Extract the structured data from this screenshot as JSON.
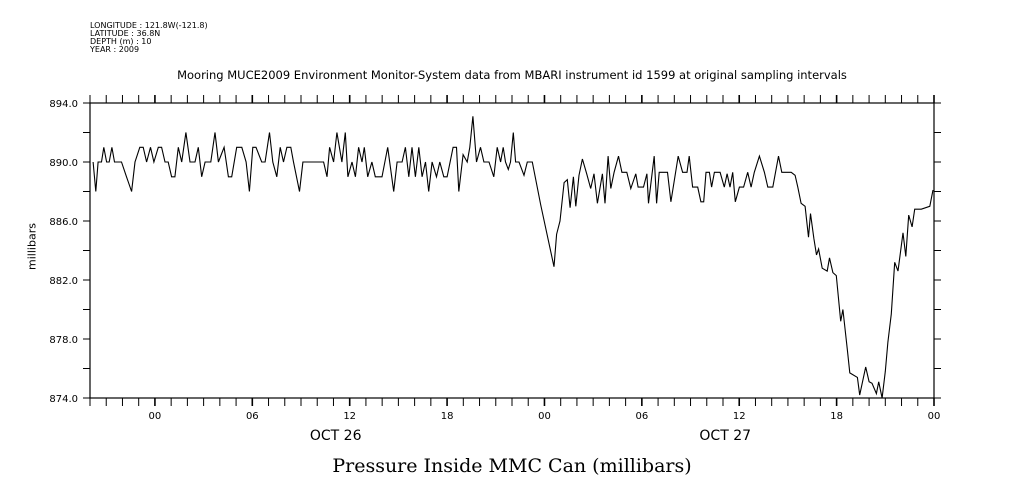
{
  "header": {
    "longitude": "LONGITUDE : 121.8W(-121.8)",
    "latitude": "LATITUDE : 36.8N",
    "depth": "DEPTH (m) : 10",
    "year": "YEAR : 2009"
  },
  "chart_data": {
    "type": "line",
    "title": "Mooring MUCE2009 Environment Monitor-System data from MBARI instrument id 1599 at original sampling intervals",
    "xlabel": "Pressure Inside MMC Can (millibars)",
    "ylabel": "millibars",
    "x_units": "hours since OCT 26 00:00",
    "xlim": [
      -4,
      48
    ],
    "ylim": [
      874,
      894
    ],
    "yticks": [
      874,
      878,
      882,
      886,
      890,
      894
    ],
    "ytick_labels": [
      "874.0",
      "878.0",
      "882.0",
      "886.0",
      "890.0",
      "894.0"
    ],
    "xticks": [
      0,
      6,
      12,
      18,
      24,
      30,
      36,
      42,
      48
    ],
    "xtick_labels": [
      "00",
      "06",
      "12",
      "18",
      "00",
      "06",
      "12",
      "18",
      "00"
    ],
    "date_labels": [
      {
        "hour": 12,
        "label": "OCT 26"
      },
      {
        "hour": 36,
        "label": "OCT 27"
      }
    ],
    "grid": false,
    "series": [
      {
        "name": "pressure",
        "x": [
          -3.81,
          -3.64,
          -3.5,
          -3.29,
          -3.15,
          -2.98,
          -2.82,
          -2.65,
          -2.49,
          -2.06,
          -1.75,
          -1.44,
          -1.23,
          -0.93,
          -0.72,
          -0.51,
          -0.27,
          -0.06,
          0.21,
          0.41,
          0.62,
          0.82,
          1.03,
          1.23,
          1.44,
          1.65,
          1.91,
          2.16,
          2.47,
          2.67,
          2.88,
          3.09,
          3.44,
          3.7,
          3.91,
          4.26,
          4.53,
          4.73,
          5.04,
          5.35,
          5.62,
          5.82,
          6.03,
          6.23,
          6.58,
          6.79,
          7.06,
          7.26,
          7.51,
          7.72,
          7.92,
          8.13,
          8.37,
          8.54,
          8.91,
          9.12,
          10.39,
          10.6,
          10.76,
          11.01,
          11.21,
          11.52,
          11.73,
          11.89,
          12.14,
          12.35,
          12.55,
          12.76,
          12.9,
          13.11,
          13.37,
          13.58,
          13.99,
          14.34,
          14.71,
          14.92,
          15.23,
          15.43,
          15.64,
          15.84,
          16.05,
          16.26,
          16.46,
          16.67,
          16.87,
          17.08,
          17.35,
          17.55,
          17.8,
          18.0,
          18.37,
          18.58,
          18.72,
          18.99,
          19.24,
          19.4,
          19.59,
          19.81,
          20.06,
          20.27,
          20.58,
          20.88,
          21.09,
          21.3,
          21.46,
          21.6,
          21.77,
          21.91,
          22.08,
          22.22,
          22.43,
          22.74,
          22.94,
          23.25,
          23.77,
          24.59,
          24.75,
          24.96,
          25.21,
          25.41,
          25.58,
          25.78,
          25.93,
          26.13,
          26.34,
          26.6,
          26.85,
          27.05,
          27.26,
          27.57,
          27.73,
          27.92,
          28.09,
          28.29,
          28.56,
          28.77,
          29.07,
          29.32,
          29.63,
          29.77,
          30.1,
          30.31,
          30.41,
          30.76,
          30.91,
          31.07,
          31.58,
          31.79,
          32.24,
          32.51,
          32.78,
          32.92,
          33.13,
          33.44,
          33.64,
          33.81,
          33.95,
          34.16,
          34.3,
          34.47,
          34.82,
          35.08,
          35.25,
          35.43,
          35.6,
          35.76,
          36.01,
          36.27,
          36.52,
          36.73,
          36.93,
          37.24,
          37.55,
          37.76,
          38.07,
          38.42,
          38.62,
          39.2,
          39.44,
          39.61,
          39.81,
          40.06,
          40.27,
          40.39,
          40.6,
          40.76,
          40.89,
          41.11,
          41.42,
          41.56,
          41.77,
          41.98,
          42.25,
          42.39,
          42.66,
          42.81,
          43.28,
          43.42,
          43.79,
          44.0,
          44.18,
          44.45,
          44.59,
          44.8,
          45.0,
          45.16,
          45.37,
          45.58,
          45.78,
          46.09,
          46.26,
          46.44,
          46.65,
          46.81,
          47.22,
          47.74,
          47.94
        ],
        "values": [
          890,
          888,
          890,
          890,
          891,
          890,
          890,
          891,
          890,
          890,
          889,
          888,
          890,
          891,
          891,
          890,
          891,
          890,
          891,
          891,
          890,
          890,
          889,
          889,
          891,
          890,
          892,
          890,
          890,
          891,
          889,
          890,
          890,
          892,
          890,
          891,
          889,
          889,
          891,
          891,
          890,
          888,
          891,
          891,
          890,
          890,
          892,
          890,
          889,
          891,
          890,
          891,
          891,
          890,
          888,
          890,
          890,
          889,
          891,
          890,
          892,
          890,
          892,
          889,
          890,
          889,
          891,
          890,
          891,
          889,
          890,
          889,
          889,
          891,
          888,
          890,
          890,
          891,
          889,
          891,
          889,
          891,
          889,
          890,
          888,
          890,
          889,
          890,
          889,
          889,
          891,
          891,
          888,
          890.5,
          890,
          891,
          893.1,
          890,
          891,
          890,
          890,
          889,
          891,
          890,
          891,
          890,
          889.5,
          890,
          892,
          890,
          890,
          889.1,
          890,
          890,
          887.1,
          882.9,
          885.1,
          886,
          888.6,
          888.8,
          886.9,
          889,
          887,
          889.1,
          890.2,
          889.2,
          888.2,
          889.2,
          887.2,
          889.2,
          887.2,
          890.4,
          888.2,
          889.3,
          890.4,
          889.3,
          889.3,
          888.2,
          889.2,
          888.3,
          888.3,
          889.2,
          887.2,
          890.4,
          887.2,
          889.3,
          889.3,
          887.3,
          890.4,
          889.3,
          889.3,
          890.4,
          888.3,
          888.3,
          887.3,
          887.3,
          889.3,
          889.3,
          888.3,
          889.3,
          889.3,
          888.3,
          889.2,
          888.3,
          889.3,
          887.3,
          888.3,
          888.3,
          889.3,
          888.3,
          889.3,
          890.4,
          889.3,
          888.3,
          888.3,
          890.4,
          889.3,
          889.3,
          889.1,
          888.3,
          887.2,
          887,
          884.9,
          886.5,
          884.8,
          883.7,
          884.1,
          882.8,
          882.6,
          883.5,
          882.5,
          882.3,
          879.2,
          880,
          877.3,
          875.7,
          875.4,
          874.2,
          876.1,
          875.1,
          875,
          874.3,
          875.1,
          874,
          875.8,
          877.8,
          879.7,
          883.2,
          882.6,
          885.2,
          883.6,
          886.4,
          885.6,
          886.8,
          886.8,
          887,
          888.1
        ]
      }
    ]
  }
}
